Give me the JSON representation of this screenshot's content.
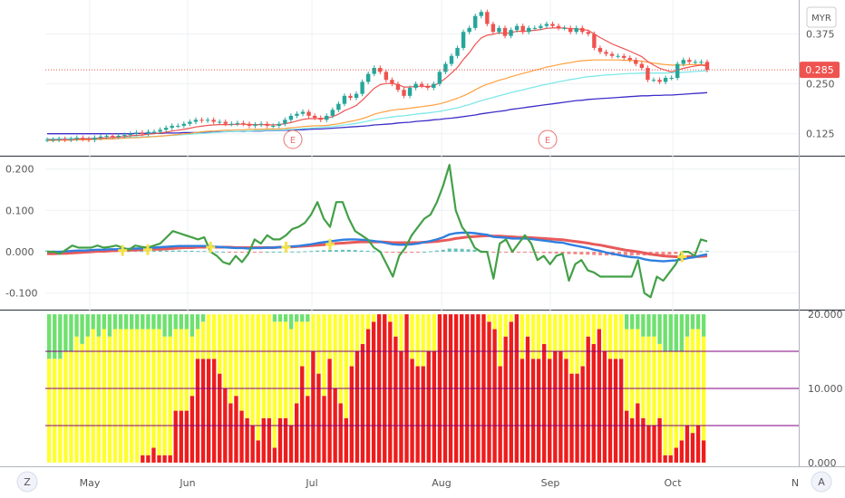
{
  "chart_data": [
    {
      "type": "candlestick",
      "title": "",
      "currency": "MYR",
      "last_price": "0.285",
      "y_ticks": [
        "0.375",
        "0.250",
        "0.125"
      ],
      "ylim": [
        0.07,
        0.46
      ],
      "earnings_markers": [
        {
          "label": "E",
          "date": "Jun 28"
        },
        {
          "label": "E",
          "date": "Aug 30"
        }
      ],
      "close_series": [
        0.11,
        0.11,
        0.112,
        0.11,
        0.112,
        0.115,
        0.112,
        0.11,
        0.115,
        0.118,
        0.12,
        0.118,
        0.12,
        0.122,
        0.125,
        0.128,
        0.125,
        0.13,
        0.13,
        0.135,
        0.14,
        0.145,
        0.145,
        0.15,
        0.155,
        0.16,
        0.158,
        0.16,
        0.155,
        0.155,
        0.15,
        0.15,
        0.152,
        0.15,
        0.145,
        0.148,
        0.15,
        0.145,
        0.145,
        0.15,
        0.16,
        0.17,
        0.175,
        0.18,
        0.17,
        0.165,
        0.16,
        0.17,
        0.185,
        0.2,
        0.22,
        0.215,
        0.225,
        0.255,
        0.275,
        0.29,
        0.28,
        0.26,
        0.25,
        0.235,
        0.22,
        0.24,
        0.25,
        0.245,
        0.24,
        0.25,
        0.28,
        0.3,
        0.32,
        0.34,
        0.38,
        0.39,
        0.42,
        0.43,
        0.4,
        0.38,
        0.39,
        0.37,
        0.385,
        0.395,
        0.38,
        0.39,
        0.39,
        0.395,
        0.4,
        0.395,
        0.39,
        0.39,
        0.38,
        0.39,
        0.38,
        0.375,
        0.34,
        0.33,
        0.325,
        0.32,
        0.32,
        0.315,
        0.31,
        0.3,
        0.29,
        0.26,
        0.26,
        0.255,
        0.265,
        0.265,
        0.3,
        0.31,
        0.305,
        0.305,
        0.305,
        0.285
      ],
      "ema_red": [
        0.11,
        0.11,
        0.11,
        0.11,
        0.11,
        0.112,
        0.112,
        0.112,
        0.113,
        0.114,
        0.115,
        0.116,
        0.117,
        0.118,
        0.12,
        0.121,
        0.122,
        0.124,
        0.125,
        0.127,
        0.129,
        0.132,
        0.134,
        0.136,
        0.139,
        0.142,
        0.144,
        0.146,
        0.147,
        0.148,
        0.148,
        0.148,
        0.149,
        0.149,
        0.148,
        0.148,
        0.148,
        0.148,
        0.147,
        0.148,
        0.15,
        0.153,
        0.157,
        0.161,
        0.163,
        0.163,
        0.163,
        0.164,
        0.168,
        0.174,
        0.183,
        0.189,
        0.196,
        0.209,
        0.224,
        0.239,
        0.248,
        0.251,
        0.251,
        0.248,
        0.242,
        0.242,
        0.244,
        0.244,
        0.243,
        0.245,
        0.253,
        0.264,
        0.277,
        0.291,
        0.311,
        0.328,
        0.349,
        0.365,
        0.372,
        0.374,
        0.378,
        0.376,
        0.378,
        0.382,
        0.381,
        0.383,
        0.384,
        0.386,
        0.389,
        0.39,
        0.39,
        0.39,
        0.388,
        0.388,
        0.386,
        0.384,
        0.375,
        0.366,
        0.358,
        0.35,
        0.344,
        0.338,
        0.332,
        0.325,
        0.318,
        0.306,
        0.297,
        0.289,
        0.284,
        0.28,
        0.284,
        0.289,
        0.292,
        0.295,
        0.297,
        0.295
      ],
      "ema_orange": [
        0.108,
        0.108,
        0.109,
        0.109,
        0.109,
        0.11,
        0.11,
        0.11,
        0.111,
        0.111,
        0.112,
        0.112,
        0.113,
        0.114,
        0.115,
        0.115,
        0.116,
        0.117,
        0.118,
        0.119,
        0.12,
        0.122,
        0.123,
        0.125,
        0.126,
        0.128,
        0.13,
        0.131,
        0.132,
        0.133,
        0.134,
        0.134,
        0.135,
        0.135,
        0.136,
        0.136,
        0.136,
        0.137,
        0.137,
        0.137,
        0.138,
        0.14,
        0.141,
        0.143,
        0.144,
        0.145,
        0.145,
        0.146,
        0.148,
        0.15,
        0.153,
        0.156,
        0.159,
        0.163,
        0.168,
        0.174,
        0.178,
        0.181,
        0.184,
        0.186,
        0.187,
        0.189,
        0.191,
        0.193,
        0.195,
        0.197,
        0.2,
        0.204,
        0.209,
        0.214,
        0.22,
        0.227,
        0.235,
        0.243,
        0.249,
        0.254,
        0.259,
        0.263,
        0.268,
        0.272,
        0.276,
        0.28,
        0.284,
        0.288,
        0.292,
        0.295,
        0.298,
        0.301,
        0.303,
        0.306,
        0.308,
        0.309,
        0.31,
        0.31,
        0.31,
        0.31,
        0.31,
        0.309,
        0.309,
        0.308,
        0.307,
        0.304,
        0.302,
        0.3,
        0.298,
        0.297,
        0.297,
        0.297,
        0.298,
        0.298,
        0.298,
        0.298
      ],
      "ema_cyan": [
        0.112,
        0.112,
        0.112,
        0.113,
        0.113,
        0.113,
        0.113,
        0.114,
        0.114,
        0.114,
        0.115,
        0.115,
        0.115,
        0.116,
        0.116,
        0.117,
        0.117,
        0.118,
        0.118,
        0.119,
        0.12,
        0.121,
        0.122,
        0.123,
        0.124,
        0.125,
        0.126,
        0.127,
        0.128,
        0.129,
        0.13,
        0.131,
        0.131,
        0.132,
        0.132,
        0.133,
        0.133,
        0.134,
        0.134,
        0.134,
        0.135,
        0.136,
        0.137,
        0.138,
        0.139,
        0.14,
        0.141,
        0.142,
        0.143,
        0.145,
        0.147,
        0.149,
        0.151,
        0.154,
        0.157,
        0.16,
        0.163,
        0.165,
        0.167,
        0.169,
        0.17,
        0.172,
        0.174,
        0.176,
        0.177,
        0.179,
        0.181,
        0.184,
        0.187,
        0.19,
        0.194,
        0.198,
        0.203,
        0.208,
        0.212,
        0.216,
        0.22,
        0.224,
        0.228,
        0.232,
        0.235,
        0.239,
        0.242,
        0.246,
        0.249,
        0.252,
        0.255,
        0.258,
        0.261,
        0.263,
        0.266,
        0.268,
        0.269,
        0.271,
        0.272,
        0.273,
        0.274,
        0.275,
        0.276,
        0.276,
        0.277,
        0.277,
        0.277,
        0.277,
        0.277,
        0.278,
        0.278,
        0.279,
        0.28,
        0.281,
        0.282,
        0.283
      ],
      "ema_blue": [
        0.125,
        0.125,
        0.125,
        0.125,
        0.125,
        0.125,
        0.125,
        0.125,
        0.125,
        0.125,
        0.125,
        0.125,
        0.125,
        0.125,
        0.125,
        0.126,
        0.126,
        0.126,
        0.126,
        0.126,
        0.127,
        0.127,
        0.127,
        0.128,
        0.128,
        0.128,
        0.129,
        0.129,
        0.129,
        0.13,
        0.13,
        0.131,
        0.131,
        0.131,
        0.132,
        0.132,
        0.132,
        0.133,
        0.133,
        0.133,
        0.134,
        0.134,
        0.135,
        0.135,
        0.136,
        0.137,
        0.137,
        0.138,
        0.139,
        0.14,
        0.141,
        0.142,
        0.143,
        0.144,
        0.145,
        0.147,
        0.148,
        0.149,
        0.15,
        0.152,
        0.153,
        0.154,
        0.156,
        0.157,
        0.158,
        0.16,
        0.161,
        0.163,
        0.164,
        0.166,
        0.168,
        0.17,
        0.172,
        0.175,
        0.177,
        0.179,
        0.181,
        0.183,
        0.186,
        0.188,
        0.19,
        0.192,
        0.194,
        0.196,
        0.198,
        0.2,
        0.202,
        0.204,
        0.206,
        0.208,
        0.209,
        0.211,
        0.212,
        0.213,
        0.214,
        0.215,
        0.216,
        0.217,
        0.218,
        0.219,
        0.22,
        0.22,
        0.221,
        0.221,
        0.222,
        0.222,
        0.223,
        0.224,
        0.225,
        0.226,
        0.227,
        0.228
      ]
    },
    {
      "type": "line",
      "title": "",
      "y_ticks": [
        "0.200",
        "0.100",
        "0.000",
        "-0.100"
      ],
      "ylim": [
        -0.14,
        0.23
      ],
      "green_line": [
        0.0,
        0.0,
        -0.005,
        0.005,
        0.015,
        0.01,
        0.01,
        0.01,
        0.015,
        0.01,
        0.012,
        0.015,
        0.01,
        0.005,
        0.015,
        0.012,
        0.01,
        0.015,
        0.02,
        0.035,
        0.05,
        0.045,
        0.04,
        0.035,
        0.03,
        0.035,
        0.0,
        -0.01,
        -0.025,
        -0.03,
        -0.01,
        -0.025,
        -0.005,
        0.03,
        0.02,
        0.04,
        0.03,
        0.03,
        0.04,
        0.055,
        0.06,
        0.07,
        0.09,
        0.12,
        0.08,
        0.06,
        0.12,
        0.12,
        0.08,
        0.05,
        0.04,
        0.03,
        0.01,
        0.0,
        -0.03,
        -0.06,
        -0.01,
        0.01,
        0.04,
        0.06,
        0.08,
        0.09,
        0.12,
        0.16,
        0.21,
        0.1,
        0.06,
        0.04,
        0.01,
        0.0,
        0.0,
        -0.065,
        0.02,
        0.03,
        0.0,
        0.02,
        0.04,
        0.02,
        -0.02,
        -0.01,
        -0.03,
        -0.01,
        -0.005,
        -0.07,
        -0.03,
        -0.02,
        -0.045,
        -0.05,
        -0.06,
        -0.06,
        -0.06,
        -0.06,
        -0.06,
        -0.06,
        -0.02,
        -0.1,
        -0.11,
        -0.06,
        -0.07,
        -0.05,
        -0.03,
        0.0,
        0.0,
        -0.01,
        0.03,
        0.025
      ],
      "blue_line": [
        0.0,
        0.0,
        0.0,
        0.001,
        0.002,
        0.003,
        0.003,
        0.004,
        0.005,
        0.005,
        0.006,
        0.006,
        0.007,
        0.007,
        0.008,
        0.008,
        0.009,
        0.01,
        0.011,
        0.012,
        0.013,
        0.014,
        0.014,
        0.014,
        0.014,
        0.014,
        0.013,
        0.012,
        0.011,
        0.01,
        0.009,
        0.009,
        0.008,
        0.009,
        0.009,
        0.01,
        0.01,
        0.011,
        0.012,
        0.013,
        0.014,
        0.016,
        0.018,
        0.021,
        0.023,
        0.025,
        0.027,
        0.029,
        0.03,
        0.03,
        0.029,
        0.028,
        0.026,
        0.024,
        0.021,
        0.018,
        0.017,
        0.017,
        0.018,
        0.02,
        0.023,
        0.026,
        0.03,
        0.035,
        0.042,
        0.045,
        0.046,
        0.046,
        0.045,
        0.043,
        0.041,
        0.036,
        0.035,
        0.034,
        0.032,
        0.032,
        0.032,
        0.031,
        0.029,
        0.027,
        0.025,
        0.023,
        0.022,
        0.018,
        0.015,
        0.012,
        0.009,
        0.005,
        0.002,
        -0.002,
        -0.005,
        -0.008,
        -0.011,
        -0.013,
        -0.014,
        -0.018,
        -0.021,
        -0.022,
        -0.023,
        -0.022,
        -0.021,
        -0.018,
        -0.015,
        -0.013,
        -0.009,
        -0.006
      ],
      "red_line": [
        -0.005,
        -0.005,
        -0.004,
        -0.004,
        -0.003,
        -0.002,
        -0.001,
        0.0,
        0.001,
        0.001,
        0.002,
        0.003,
        0.003,
        0.004,
        0.004,
        0.005,
        0.005,
        0.006,
        0.006,
        0.007,
        0.008,
        0.009,
        0.01,
        0.01,
        0.011,
        0.011,
        0.011,
        0.011,
        0.011,
        0.011,
        0.01,
        0.01,
        0.01,
        0.01,
        0.01,
        0.01,
        0.01,
        0.011,
        0.011,
        0.012,
        0.013,
        0.014,
        0.015,
        0.016,
        0.017,
        0.018,
        0.02,
        0.021,
        0.022,
        0.023,
        0.024,
        0.024,
        0.024,
        0.024,
        0.023,
        0.022,
        0.022,
        0.022,
        0.022,
        0.022,
        0.023,
        0.024,
        0.025,
        0.027,
        0.029,
        0.032,
        0.034,
        0.036,
        0.037,
        0.038,
        0.039,
        0.038,
        0.038,
        0.037,
        0.036,
        0.035,
        0.035,
        0.034,
        0.033,
        0.032,
        0.031,
        0.03,
        0.029,
        0.027,
        0.025,
        0.023,
        0.021,
        0.018,
        0.016,
        0.013,
        0.01,
        0.007,
        0.004,
        0.002,
        0.0,
        -0.003,
        -0.006,
        -0.008,
        -0.01,
        -0.011,
        -0.012,
        -0.012,
        -0.012,
        -0.012,
        -0.011,
        -0.01
      ]
    },
    {
      "type": "bar",
      "title": "",
      "y_ticks": [
        "20.000",
        "10.000",
        "0.000"
      ],
      "ylim": [
        -0.5,
        20.5
      ],
      "reference_lines": [
        15,
        10,
        5
      ],
      "segment_colors": {
        "red": "#ee1c1c",
        "yellow": "#ffff2e",
        "green": "#6fe06f"
      },
      "red_values": [
        0,
        0,
        0,
        0,
        0,
        0,
        0,
        0,
        0,
        0,
        0,
        0,
        0,
        0,
        0,
        0,
        0,
        1,
        1,
        2,
        1,
        1,
        1,
        7,
        7,
        7,
        9,
        14,
        14,
        14,
        14,
        12,
        10,
        8,
        9,
        7,
        6,
        5,
        3,
        6,
        6,
        2,
        6,
        6,
        5,
        8,
        13,
        9,
        15,
        12,
        9,
        14,
        10,
        8,
        6,
        13,
        15,
        16,
        18,
        19,
        20,
        20,
        19,
        17,
        15,
        20,
        14,
        13,
        13,
        15,
        15,
        20,
        20,
        20,
        20,
        20,
        20,
        20,
        20,
        20,
        19,
        18,
        13,
        17,
        19,
        20,
        14,
        17,
        14,
        14,
        16,
        14,
        15,
        15,
        14,
        12,
        12,
        13,
        17,
        16,
        18,
        15,
        14,
        14,
        14,
        7,
        6,
        8,
        6,
        5,
        5,
        6,
        1,
        1,
        2,
        3,
        5,
        4,
        5,
        3
      ],
      "green_values": [
        6,
        6,
        6,
        5,
        5,
        3,
        4,
        3,
        2,
        3,
        2,
        3,
        2,
        2,
        2,
        2,
        2,
        2,
        2,
        2,
        2,
        3,
        3,
        2,
        2,
        2,
        3,
        2,
        1,
        0,
        0,
        0,
        0,
        0,
        0,
        0,
        0,
        0,
        0,
        0,
        0,
        1,
        1,
        1,
        2,
        1,
        1,
        1,
        0,
        0,
        0,
        0,
        0,
        0,
        0,
        0,
        0,
        0,
        0,
        0,
        0,
        0,
        0,
        0,
        0,
        0,
        0,
        0,
        0,
        0,
        0,
        0,
        0,
        0,
        0,
        0,
        0,
        0,
        0,
        0,
        0,
        0,
        0,
        0,
        0,
        0,
        0,
        0,
        0,
        0,
        0,
        0,
        0,
        0,
        0,
        0,
        0,
        0,
        0,
        0,
        0,
        0,
        0,
        0,
        0,
        2,
        2,
        2,
        3,
        3,
        3,
        4,
        5,
        5,
        5,
        5,
        3,
        2,
        2,
        3
      ],
      "total": 20
    }
  ],
  "x_axis": {
    "ticks": [
      "May",
      "Jun",
      "Jul",
      "Aug",
      "Sep",
      "Oct",
      "N"
    ]
  },
  "corner_buttons": {
    "left": "Z",
    "right": "A"
  },
  "colors": {
    "up": "#26a69a",
    "down": "#ef5350",
    "ema_red": "#ef5350",
    "ema_orange": "#ffa040",
    "ema_cyan": "#7fe8e8",
    "ema_blue": "#3c2ec8",
    "osc_green": "#43a047",
    "osc_blue": "#2f7fe0",
    "osc_red": "#e85a5a",
    "price_label_bg": "#ef5350",
    "earnings": "#e57373",
    "ref_line": "#800080"
  }
}
